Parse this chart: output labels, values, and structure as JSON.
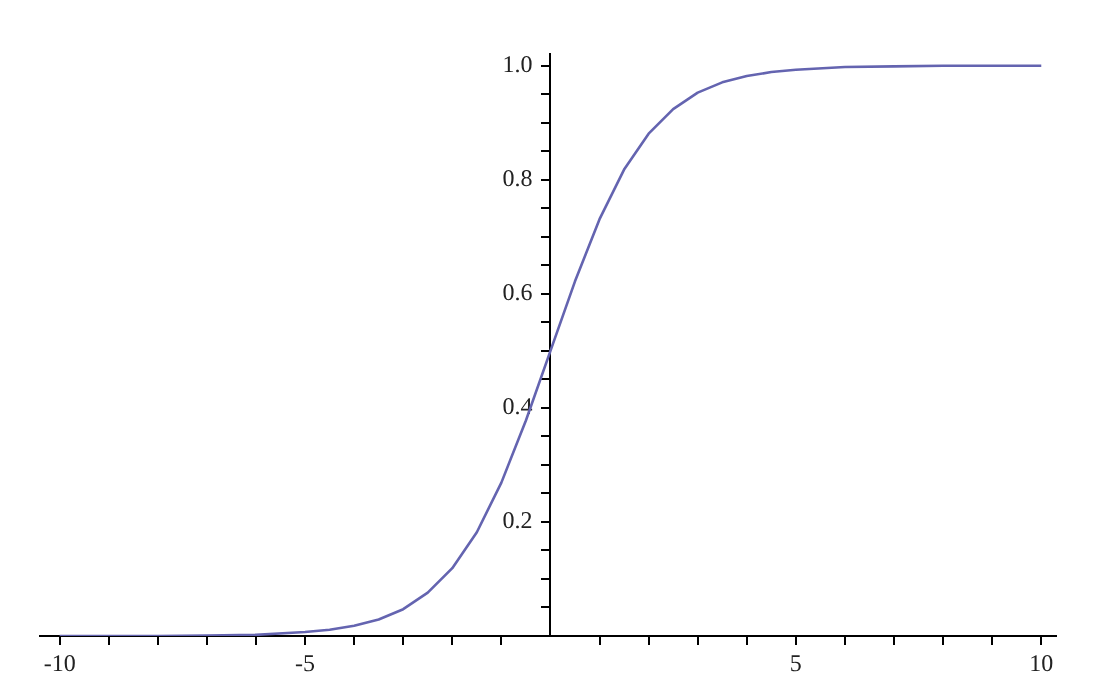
{
  "chart_data": {
    "type": "line",
    "x": [
      -10,
      -9,
      -8,
      -7,
      -6,
      -5,
      -4.5,
      -4,
      -3.5,
      -3,
      -2.5,
      -2,
      -1.5,
      -1,
      -0.5,
      0,
      0.5,
      1,
      1.5,
      2,
      2.5,
      3,
      3.5,
      4,
      4.5,
      5,
      6,
      7,
      8,
      9,
      10
    ],
    "series": [
      {
        "color": "#6464b0",
        "values": [
          0,
          0,
          0,
          0.001,
          0.002,
          0.007,
          0.011,
          0.018,
          0.029,
          0.047,
          0.076,
          0.119,
          0.182,
          0.269,
          0.378,
          0.5,
          0.622,
          0.731,
          0.818,
          0.881,
          0.924,
          0.953,
          0.971,
          0.982,
          0.989,
          0.993,
          0.998,
          0.999,
          1,
          1,
          1
        ]
      }
    ],
    "xlim": [
      -10.4,
      10.3
    ],
    "ylim": [
      0,
      1.02
    ],
    "xticks": [
      -10,
      {
        "value": -9,
        "label": null
      },
      {
        "value": -8,
        "label": null
      },
      {
        "value": -7,
        "label": null
      },
      {
        "value": -6,
        "label": null
      },
      -5,
      {
        "value": -4,
        "label": null
      },
      {
        "value": -3,
        "label": null
      },
      {
        "value": -2,
        "label": null
      },
      {
        "value": -1,
        "label": null
      },
      {
        "value": 1,
        "label": null
      },
      {
        "value": 2,
        "label": null
      },
      {
        "value": 3,
        "label": null
      },
      {
        "value": 4,
        "label": null
      },
      5,
      {
        "value": 6,
        "label": null
      },
      {
        "value": 7,
        "label": null
      },
      {
        "value": 8,
        "label": null
      },
      {
        "value": 9,
        "label": null
      },
      10
    ],
    "yticks": [
      {
        "value": 0.05,
        "label": null
      },
      {
        "value": 0.1,
        "label": null
      },
      {
        "value": 0.15,
        "label": null
      },
      0.2,
      {
        "value": 0.25,
        "label": null
      },
      {
        "value": 0.3,
        "label": null
      },
      {
        "value": 0.35,
        "label": null
      },
      0.4,
      {
        "value": 0.45,
        "label": null
      },
      {
        "value": 0.5,
        "label": null
      },
      {
        "value": 0.55,
        "label": null
      },
      0.6,
      {
        "value": 0.65,
        "label": null
      },
      {
        "value": 0.7,
        "label": null
      },
      {
        "value": 0.75,
        "label": null
      },
      0.8,
      {
        "value": 0.85,
        "label": null
      },
      {
        "value": 0.9,
        "label": null
      },
      {
        "value": 0.95,
        "label": null
      },
      {
        "value": 1,
        "label": "1.0"
      }
    ],
    "grid": false,
    "legend": false,
    "marker": "none",
    "line_style": "solid"
  }
}
